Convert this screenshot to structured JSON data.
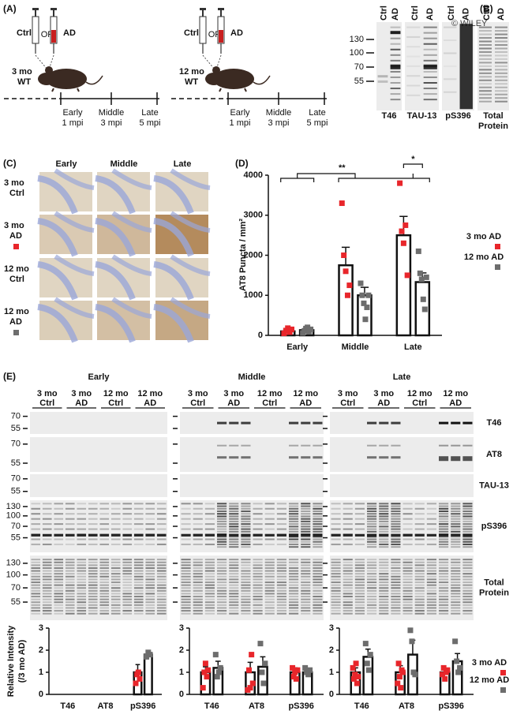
{
  "panels": {
    "a": {
      "label": "(A)",
      "ctrl": "Ctrl",
      "or": "OR",
      "ad": "AD",
      "groups": [
        [
          "3 mo",
          "WT"
        ],
        [
          "12 mo",
          "WT"
        ]
      ],
      "timepoints": [
        [
          "Early",
          "1 mpi"
        ],
        [
          "Middle",
          "3 mpi"
        ],
        [
          "Late",
          "5 mpi"
        ]
      ]
    },
    "b": {
      "label": "(B)",
      "lane_labels": [
        "Ctrl",
        "AD"
      ],
      "markers": [
        130,
        100,
        70,
        55
      ],
      "blots": [
        [
          "T46"
        ],
        [
          "TAU-13"
        ],
        [
          "pS396"
        ],
        [
          "Total",
          "Protein"
        ]
      ],
      "watermark": "© WILEY"
    },
    "c": {
      "label": "(C)",
      "columns": [
        "Early",
        "Middle",
        "Late"
      ],
      "rows": [
        [
          "3 mo",
          "Ctrl"
        ],
        [
          "3 mo",
          "AD"
        ],
        [
          "12 mo",
          "Ctrl"
        ],
        [
          "12 mo",
          "AD"
        ]
      ]
    },
    "d": {
      "label": "(D)"
    },
    "e": {
      "label": "(E)",
      "groups": [
        "Early",
        "Middle",
        "Late"
      ],
      "lanes": [
        [
          "3 mo",
          "Ctrl"
        ],
        [
          "3 mo",
          "AD"
        ],
        [
          "12 mo",
          "Ctrl"
        ],
        [
          "12 mo",
          "AD"
        ]
      ],
      "rows": [
        {
          "name": [
            "T46"
          ],
          "markers": [
            70,
            55
          ]
        },
        {
          "name": [
            "AT8"
          ],
          "markers": [
            70,
            55
          ]
        },
        {
          "name": [
            "TAU-13"
          ],
          "markers": [
            70,
            55
          ]
        },
        {
          "name": [
            "pS396"
          ],
          "markers": [
            130,
            100,
            70,
            55
          ]
        },
        {
          "name": [
            "Total",
            "Protein"
          ],
          "markers": [
            130,
            100,
            70,
            55
          ]
        }
      ]
    }
  },
  "chart_data": [
    {
      "type": "bar",
      "ylabel": "AT8 Puncta / mm²",
      "categories": [
        "Early",
        "Middle",
        "Late"
      ],
      "ylim": [
        0,
        4000
      ],
      "yticks": [
        0,
        1000,
        2000,
        3000,
        4000
      ],
      "annotations": [
        "**",
        "*"
      ],
      "series": [
        {
          "name": "3 mo AD",
          "color": "#e8262b",
          "values": [
            100,
            1750,
            2500
          ],
          "errors": [
            40,
            450,
            470
          ],
          "points": [
            [
              50,
              120,
              180,
              80,
              150
            ],
            [
              3300,
              2000,
              1600,
              1000,
              1250
            ],
            [
              3800,
              2600,
              2300,
              2750,
              1500
            ]
          ]
        },
        {
          "name": "12 mo AD",
          "color": "#6d6d6d",
          "values": [
            130,
            1000,
            1330
          ],
          "errors": [
            40,
            200,
            230
          ],
          "points": [
            [
              60,
              110,
              170,
              200,
              90,
              150
            ],
            [
              1300,
              1000,
              800,
              400,
              700,
              1000
            ],
            [
              2100,
              1550,
              1400,
              900,
              650,
              1450
            ]
          ]
        }
      ]
    },
    {
      "type": "bar",
      "ylabel_lines": [
        "Relative Intensity",
        "(/3 mo AD)"
      ],
      "categories": [
        "T46",
        "AT8",
        "pS396"
      ],
      "ylim": [
        0,
        3
      ],
      "yticks": [
        0,
        1,
        2,
        3
      ],
      "series": [
        {
          "color": "#e8262b",
          "values": [
            null,
            null,
            1.0
          ],
          "errors": [
            null,
            null,
            0.35
          ],
          "points": [
            [],
            [],
            [
              0.5,
              0.9,
              1.0,
              0.7
            ]
          ]
        },
        {
          "color": "#6d6d6d",
          "values": [
            null,
            null,
            1.8
          ],
          "errors": [
            null,
            null,
            0.1
          ],
          "points": [
            [],
            [],
            [
              1.7,
              1.9,
              1.8
            ]
          ]
        }
      ]
    },
    {
      "type": "bar",
      "categories": [
        "T46",
        "AT8",
        "pS396"
      ],
      "ylim": [
        0,
        3
      ],
      "yticks": [
        0,
        1,
        2,
        3
      ],
      "series": [
        {
          "color": "#e8262b",
          "values": [
            1.0,
            1.0,
            1.0
          ],
          "errors": [
            0.25,
            0.45,
            0.2
          ],
          "points": [
            [
              0.3,
              1.0,
              1.4,
              0.8,
              1.1
            ],
            [
              0.2,
              1.1,
              0.3,
              1.8,
              0.5
            ],
            [
              1.2,
              0.8,
              1.0,
              0.7,
              1.1
            ]
          ]
        },
        {
          "color": "#6d6d6d",
          "values": [
            1.2,
            1.25,
            1.0
          ],
          "errors": [
            0.3,
            0.45,
            0.15
          ],
          "points": [
            [
              1.8,
              0.8,
              1.0,
              1.2
            ],
            [
              2.3,
              1.0,
              0.5,
              1.4
            ],
            [
              1.2,
              1.0,
              0.9,
              1.1
            ]
          ]
        }
      ]
    },
    {
      "type": "bar",
      "categories": [
        "T46",
        "AT8",
        "pS396"
      ],
      "ylim": [
        0,
        3
      ],
      "yticks": [
        0,
        1,
        2,
        3
      ],
      "series": [
        {
          "name": "3 mo AD",
          "color": "#e8262b",
          "values": [
            1.0,
            1.0,
            1.0
          ],
          "errors": [
            0.2,
            0.3,
            0.15
          ],
          "points": [
            [
              1.2,
              0.7,
              0.9,
              1.4,
              0.5,
              0.8
            ],
            [
              0.5,
              1.4,
              0.8,
              0.3,
              1.1,
              1.0
            ],
            [
              0.9,
              1.2,
              0.7,
              1.0,
              1.1
            ]
          ]
        },
        {
          "name": "12 mo AD",
          "color": "#6d6d6d",
          "values": [
            1.7,
            1.8,
            1.5
          ],
          "errors": [
            0.35,
            0.65,
            0.35
          ],
          "points": [
            [
              2.3,
              1.4,
              1.1,
              1.8
            ],
            [
              2.9,
              2.4,
              1.0,
              0.9
            ],
            [
              2.4,
              1.5,
              1.0,
              1.2
            ]
          ]
        }
      ]
    }
  ]
}
